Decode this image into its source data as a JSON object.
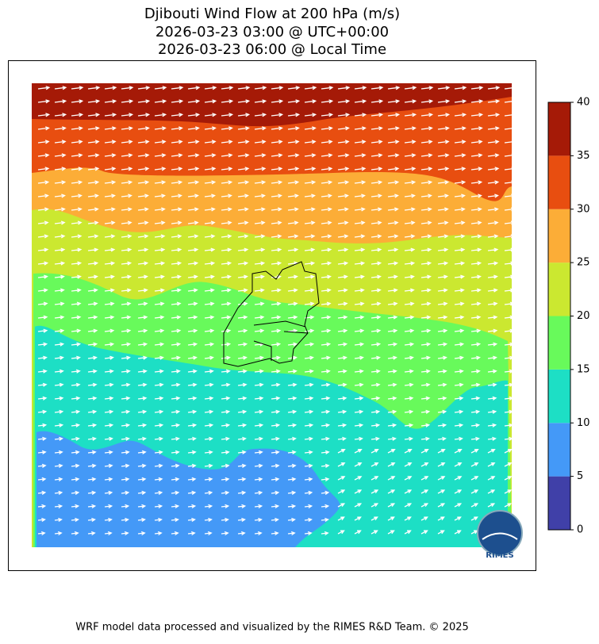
{
  "title": [
    "Djibouti Wind Flow at 200 hPa (m/s)",
    "2026-03-23 03:00 @ UTC+00:00",
    "2026-03-23 06:00 @ Local Time"
  ],
  "colorbar": {
    "lim": [
      0,
      40
    ],
    "ticks": [
      0,
      5,
      10,
      15,
      20,
      25,
      30,
      35,
      40
    ],
    "colors": [
      "#4040a8",
      "#4499f7",
      "#1ddfc5",
      "#68fa5b",
      "#cbe830",
      "#fcad37",
      "#e84e10",
      "#a51a07"
    ]
  },
  "logo": "RIMES",
  "footer": "WRF model data processed and visualized by the RIMES R&D Team. © 2025"
}
